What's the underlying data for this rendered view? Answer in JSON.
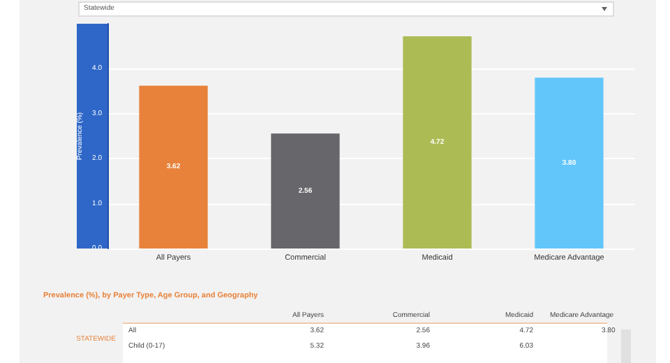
{
  "chart_data": {
    "type": "bar",
    "ylabel": "Prevalence (%)",
    "categories": [
      "All Payers",
      "Commercial",
      "Medicaid",
      "Medicare Advantage"
    ],
    "values": [
      3.62,
      2.56,
      4.72,
      3.8
    ],
    "colors": [
      "#e8823a",
      "#67676b",
      "#adbb55",
      "#62c6fb"
    ],
    "ylim": [
      0,
      5
    ],
    "yticks": [
      {
        "value": 0,
        "label": "0.0"
      },
      {
        "value": 1,
        "label": "1.0"
      },
      {
        "value": 2,
        "label": "2.0"
      },
      {
        "value": 3,
        "label": "3.0"
      },
      {
        "value": 4,
        "label": "4.0"
      }
    ],
    "grid": "y",
    "value_labels": [
      "3.62",
      "2.56",
      "4.72",
      "3.80"
    ],
    "annotations": [
      "Statewide",
      "Prevalence (%), by Payer Type, Age Group, and Geography",
      "All Payers",
      "Commercial",
      "Medicaid",
      "Medicare Advantage",
      "STATEWIDE",
      "All",
      "3.62",
      "2.56",
      "4.72",
      "3.80",
      "Child (0-17)",
      "5.32",
      "3.96",
      "6.03"
    ]
  }
}
